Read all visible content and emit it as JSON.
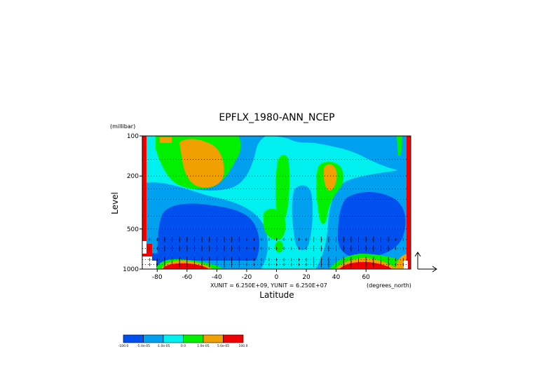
{
  "chart_data": {
    "type": "heatmap",
    "title": "EPFLX_1980-ANN_NCEP",
    "xlabel": "Latitude",
    "ylabel": "Level",
    "yunit": "(millibar)",
    "xunit_label": "(degrees_north)",
    "vector_scale_text": "XUNIT = 6.250E+09, YUNIT = 6.250E+07",
    "x_ticks": [
      "-80",
      "-60",
      "-40",
      "-20",
      "0",
      "20",
      "40",
      "60"
    ],
    "y_ticks": [
      "100",
      "200",
      "500",
      "1000"
    ],
    "x_range": [
      -90,
      90
    ],
    "y_range_mb": [
      1000,
      100
    ],
    "y_log_scale": true,
    "grid": "dotted horizontal lines",
    "colorbar": {
      "colors": [
        "#0050f0",
        "#00a0f0",
        "#00f0f0",
        "#00f000",
        "#f0a000",
        "#f00000"
      ],
      "labels": [
        "-100.0",
        "-5.0e-05",
        "-1.0e-05",
        "0.0",
        "1.0e-05",
        "5.0e-05",
        "100.0"
      ]
    },
    "field_description_levels": {
      "strong_negative": "#0050f0",
      "negative": "#00a0f0",
      "weak_negative": "#00f0f0",
      "weak_positive": "#00f000",
      "positive": "#f0a000",
      "strong_positive": "#f00000"
    }
  }
}
